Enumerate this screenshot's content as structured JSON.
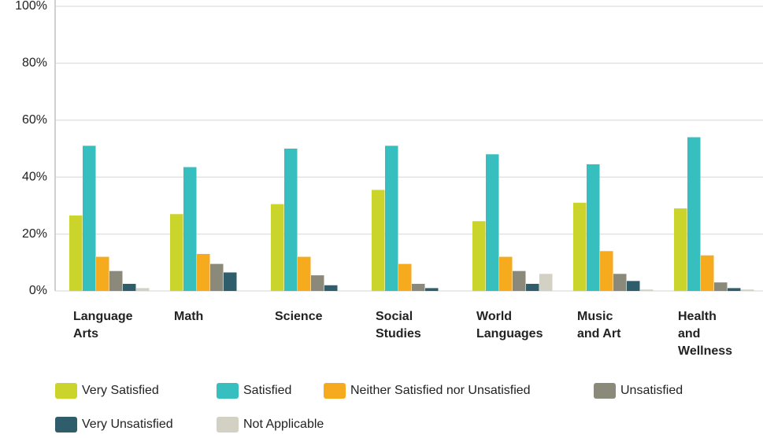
{
  "chart_data": {
    "type": "bar",
    "categories": [
      "Language Arts",
      "Math",
      "Science",
      "Social Studies",
      "World Languages",
      "Music and Art",
      "Health and Wellness"
    ],
    "series": [
      {
        "name": "Very Satisfied",
        "color": "#cad42b",
        "values": [
          26.5,
          27,
          30.5,
          35.5,
          24.5,
          31,
          29
        ]
      },
      {
        "name": "Satisfied",
        "color": "#37bfbf",
        "values": [
          51,
          43.5,
          50,
          51,
          48,
          44.5,
          54
        ]
      },
      {
        "name": "Neither Satisfied nor Unsatisfied",
        "color": "#f6aa1d",
        "values": [
          12,
          13,
          12,
          9.5,
          12,
          14,
          12.5
        ]
      },
      {
        "name": "Unsatisfied",
        "color": "#8b8a7a",
        "values": [
          7,
          9.5,
          5.5,
          2.5,
          7,
          6,
          3
        ]
      },
      {
        "name": "Very Unsatisfied",
        "color": "#2f5d6c",
        "values": [
          2.5,
          6.5,
          2,
          1,
          2.5,
          3.5,
          1
        ]
      },
      {
        "name": "Not Applicable",
        "color": "#d3d1c3",
        "values": [
          1,
          0,
          0,
          0,
          6,
          0.5,
          0.5
        ]
      }
    ],
    "ylim": [
      0,
      100
    ],
    "yticks": [
      {
        "value": 0,
        "label": "0%"
      },
      {
        "value": 20,
        "label": "20%"
      },
      {
        "value": 40,
        "label": "40%"
      },
      {
        "value": 60,
        "label": "60%"
      },
      {
        "value": 80,
        "label": "80%"
      },
      {
        "value": 100,
        "label": "100%"
      }
    ],
    "grid": true
  }
}
